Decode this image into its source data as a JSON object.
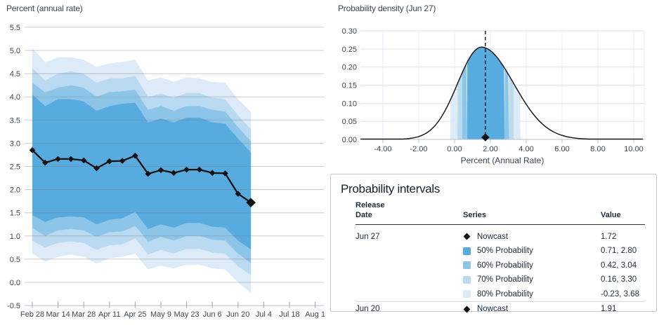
{
  "colors": {
    "bands": {
      "p50": "#57abdf",
      "p60": "#8cc5e8",
      "p70": "#b9daf0",
      "p80": "#dcebf7"
    },
    "line": "#121212",
    "grid": "#d9d9d9",
    "axis_text": "#3c4650",
    "table_text": "#1b2938",
    "density_vgrid": "#e7eef6",
    "density_hgrid": "#e2e2e2",
    "density_axis": "#b6c0c9",
    "density_tick": "#a9c7e2",
    "baseline": "#c4cad0",
    "tick": "#97a1ab"
  },
  "chart_data": [
    {
      "type": "area",
      "subtype": "fan-chart-with-line",
      "title": "Percent (annual rate)",
      "ylim": [
        -0.5,
        5.5
      ],
      "y_tick_step": 0.5,
      "grid": "horizontal",
      "x_axis_tick_labels": [
        "Feb 28",
        "Mar 14",
        "Mar 28",
        "Apr 11",
        "Apr 25",
        "May 9",
        "May 23",
        "Jun 6",
        "Jun 20",
        "Jul 4",
        "Jul 18",
        "Aug 1"
      ],
      "x_dates": [
        "Feb 28",
        "Mar 7",
        "Mar 14",
        "Mar 21",
        "Mar 28",
        "Apr 4",
        "Apr 11",
        "Apr 18",
        "Apr 25",
        "May 2",
        "May 9",
        "May 16",
        "May 23",
        "May 30",
        "Jun 6",
        "Jun 13",
        "Jun 20",
        "Jun 27"
      ],
      "series": [
        {
          "name": "Nowcast",
          "values": [
            2.85,
            2.58,
            2.66,
            2.66,
            2.63,
            2.46,
            2.61,
            2.62,
            2.73,
            2.34,
            2.42,
            2.36,
            2.43,
            2.43,
            2.36,
            2.35,
            1.91,
            1.72
          ]
        }
      ],
      "bands": {
        "p80": {
          "hi": [
            5.05,
            4.75,
            4.85,
            4.85,
            4.8,
            4.65,
            4.72,
            4.75,
            4.8,
            4.35,
            4.42,
            4.32,
            4.42,
            4.4,
            4.32,
            4.3,
            3.95,
            3.68
          ],
          "lo": [
            0.62,
            0.45,
            0.55,
            0.6,
            0.55,
            0.4,
            0.52,
            0.55,
            0.62,
            0.28,
            0.36,
            0.3,
            0.38,
            0.38,
            0.3,
            0.28,
            0.0,
            -0.23
          ]
        },
        "p70": {
          "hi": [
            4.62,
            4.35,
            4.5,
            4.55,
            4.5,
            4.3,
            4.4,
            4.4,
            4.45,
            4.0,
            4.07,
            3.98,
            4.08,
            4.08,
            3.98,
            3.95,
            3.6,
            3.3
          ],
          "lo": [
            0.9,
            0.75,
            0.85,
            0.88,
            0.85,
            0.7,
            0.8,
            0.82,
            0.95,
            0.6,
            0.7,
            0.62,
            0.72,
            0.72,
            0.64,
            0.62,
            0.35,
            0.16
          ]
        },
        "p60": {
          "hi": [
            4.3,
            4.1,
            4.2,
            4.25,
            4.2,
            4.0,
            4.1,
            4.12,
            4.15,
            3.72,
            3.8,
            3.7,
            3.8,
            3.8,
            3.72,
            3.68,
            3.35,
            3.04
          ],
          "lo": [
            1.17,
            1.0,
            1.12,
            1.15,
            1.12,
            0.98,
            1.08,
            1.1,
            1.22,
            0.88,
            0.98,
            0.9,
            1.0,
            1.0,
            0.92,
            0.9,
            0.62,
            0.42
          ]
        },
        "p50": {
          "hi": [
            4.05,
            3.8,
            3.95,
            3.95,
            3.9,
            3.7,
            3.8,
            3.85,
            3.87,
            3.45,
            3.53,
            3.45,
            3.55,
            3.55,
            3.45,
            3.42,
            3.1,
            2.8
          ],
          "lo": [
            1.45,
            1.3,
            1.4,
            1.42,
            1.4,
            1.25,
            1.35,
            1.38,
            1.52,
            1.15,
            1.25,
            1.18,
            1.28,
            1.28,
            1.2,
            1.18,
            0.9,
            0.71
          ]
        }
      }
    },
    {
      "type": "line",
      "subtype": "probability-density",
      "title": "Probability density (Jun 27)",
      "xlabel": "Percent (Annual Rate)",
      "xlim": [
        -5.25,
        10.55
      ],
      "ylim": [
        0,
        0.3
      ],
      "x_ticks": [
        -4,
        -2,
        0,
        2,
        4,
        6,
        8,
        10
      ],
      "x_tick_labels": [
        "-4.00",
        "-2.00",
        "0.00",
        "2.00",
        "4.00",
        "6.00",
        "8.00",
        "10.00"
      ],
      "y_ticks": [
        0,
        0.05,
        0.1,
        0.15,
        0.2,
        0.25,
        0.3
      ],
      "y_tick_labels": [
        "0.00",
        "0.05",
        "0.10",
        "0.15",
        "0.20",
        "0.25",
        "0.30"
      ],
      "nowcast": 1.72,
      "peak_density": 0.247,
      "density_params": {
        "mode": 1.5,
        "sigma_left": 1.33,
        "sigma_right": 1.8
      },
      "intervals": {
        "p50": [
          0.71,
          2.8
        ],
        "p60": [
          0.42,
          3.04
        ],
        "p70": [
          0.16,
          3.3
        ],
        "p80": [
          -0.23,
          3.68
        ]
      }
    }
  ],
  "table": {
    "title": "Probability intervals",
    "headers": {
      "date_line1": "Release",
      "date_line2": "Date",
      "series": "Series",
      "value": "Value"
    },
    "rows": [
      {
        "date": "Jun 27",
        "marker": "diamond",
        "series": "Nowcast",
        "value": "1.72"
      },
      {
        "date": "",
        "marker": "p50",
        "series": "50% Probability",
        "value": "0.71, 2.80"
      },
      {
        "date": "",
        "marker": "p60",
        "series": "60% Probability",
        "value": "0.42, 3.04"
      },
      {
        "date": "",
        "marker": "p70",
        "series": "70% Probability",
        "value": "0.16, 3.30"
      },
      {
        "date": "",
        "marker": "p80",
        "series": "80% Probability",
        "value": "-0.23, 3.68",
        "separator_after": true
      },
      {
        "date": "Jun 20",
        "marker": "diamond",
        "series": "Nowcast",
        "value": "1.91",
        "separator": true
      }
    ]
  }
}
